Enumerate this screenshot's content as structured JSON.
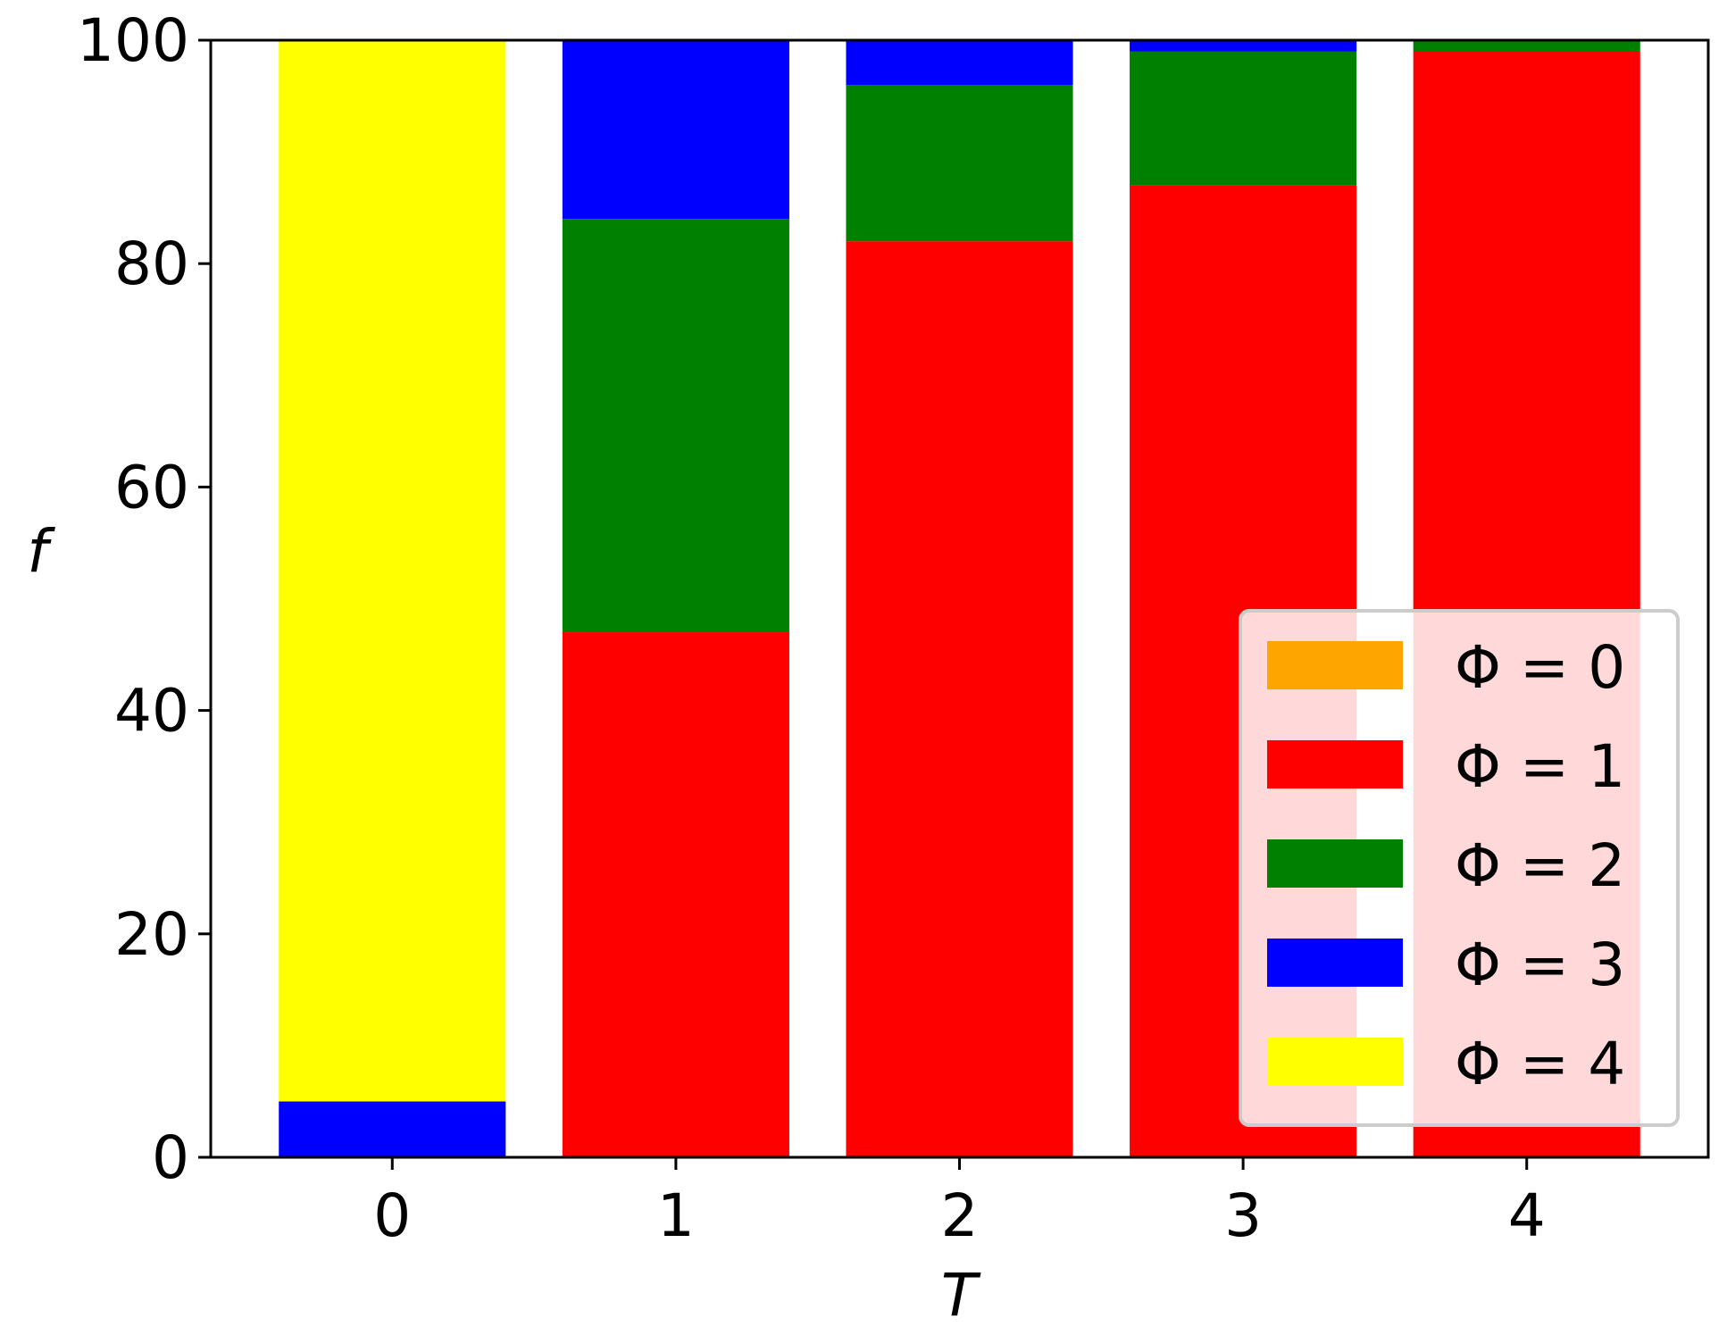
{
  "chart_data": {
    "type": "bar",
    "stacked": true,
    "categories": [
      "0",
      "1",
      "2",
      "3",
      "4"
    ],
    "xlabel": "T",
    "ylabel": "f",
    "ylim": [
      0,
      100
    ],
    "yticks": [
      "0",
      "20",
      "40",
      "60",
      "80",
      "100"
    ],
    "series": [
      {
        "name": "Φ = 0",
        "color": "#FFA500",
        "values": [
          0,
          0,
          0,
          0,
          0
        ]
      },
      {
        "name": "Φ = 1",
        "color": "#FF0000",
        "values": [
          0,
          47,
          82,
          87,
          99
        ]
      },
      {
        "name": "Φ = 2",
        "color": "#008000",
        "values": [
          0,
          37,
          14,
          12,
          1
        ]
      },
      {
        "name": "Φ = 3",
        "color": "#0000FF",
        "values": [
          5,
          16,
          4,
          1,
          0
        ]
      },
      {
        "name": "Φ = 4",
        "color": "#FFFF00",
        "values": [
          95,
          0,
          0,
          0,
          0
        ]
      }
    ],
    "legend": {
      "placement": "lower-right"
    },
    "grid": false
  }
}
